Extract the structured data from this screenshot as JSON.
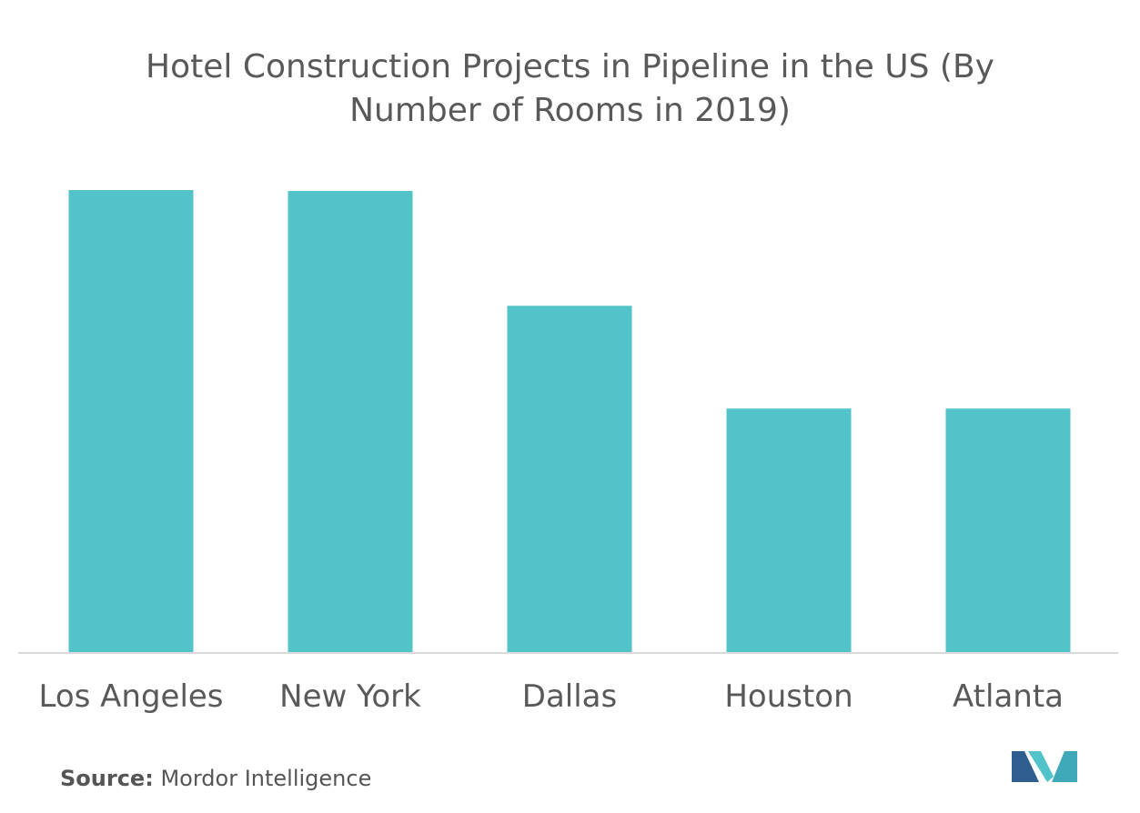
{
  "chart_data": {
    "type": "bar",
    "title": "Hotel Construction Projects in Pipeline in the US (By Number of Rooms in 2019)",
    "categories": [
      "Los Angeles",
      "New York",
      "Dallas",
      "Houston",
      "Atlanta"
    ],
    "values": [
      100,
      99.8,
      75,
      52.8,
      52.8
    ],
    "ylim": [
      0,
      100
    ],
    "xlabel": "",
    "ylabel": "",
    "grid": false,
    "bar_color": "#52C3C9",
    "axis_color": "#D9D9D9"
  },
  "source": {
    "label": "Source:",
    "text": "Mordor Intelligence"
  },
  "logo": {
    "icon": "mordor-intelligence-logo",
    "colors": [
      "#2E5D8F",
      "#52C3C9",
      "#3FA9B9"
    ]
  }
}
